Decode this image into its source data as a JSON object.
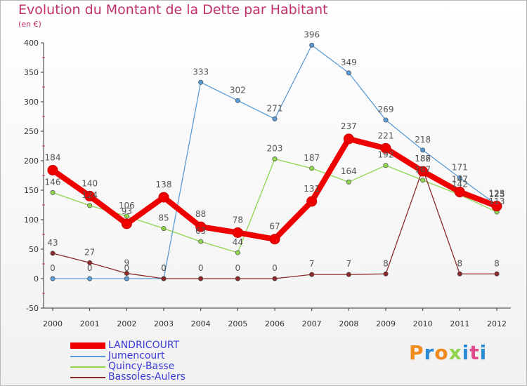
{
  "chart_data": {
    "type": "line",
    "title": "Evolution du Montant de la Dette par Habitant",
    "subtitle": "(en €)",
    "x": [
      "2000",
      "2001",
      "2002",
      "2003",
      "2004",
      "2005",
      "2006",
      "2007",
      "2008",
      "2009",
      "2010",
      "2011",
      "2012"
    ],
    "ylim": [
      -50,
      400
    ],
    "yticks": [
      -50,
      0,
      50,
      100,
      150,
      200,
      250,
      300,
      350,
      400
    ],
    "grid": false,
    "legend_position": "bottom-left",
    "series": [
      {
        "name": "LANDRICOURT",
        "color": "#ee0000",
        "values": [
          184,
          140,
          93,
          138,
          88,
          78,
          67,
          131,
          237,
          221,
          182,
          147,
          123
        ]
      },
      {
        "name": "Jumencourt",
        "color": "#5b9bd5",
        "values": [
          0,
          0,
          0,
          0,
          333,
          302,
          271,
          396,
          349,
          269,
          218,
          171,
          125
        ]
      },
      {
        "name": "Quincy-Basse",
        "color": "#8fd34f",
        "values": [
          146,
          124,
          106,
          85,
          63,
          44,
          203,
          187,
          164,
          192,
          167,
          142,
          113
        ]
      },
      {
        "name": "Bassoles-Aulers",
        "color": "#8b2a2a",
        "values": [
          43,
          27,
          9,
          0,
          0,
          0,
          0,
          7,
          7,
          8,
          186,
          8,
          8
        ]
      }
    ]
  },
  "logo_text": "Proxiti",
  "logo_colors": [
    "#f08a1c",
    "#2b8ad6",
    "#f08a1c",
    "#8fd34f",
    "#2b8ad6",
    "#e04a8a",
    "#2b8ad6"
  ]
}
